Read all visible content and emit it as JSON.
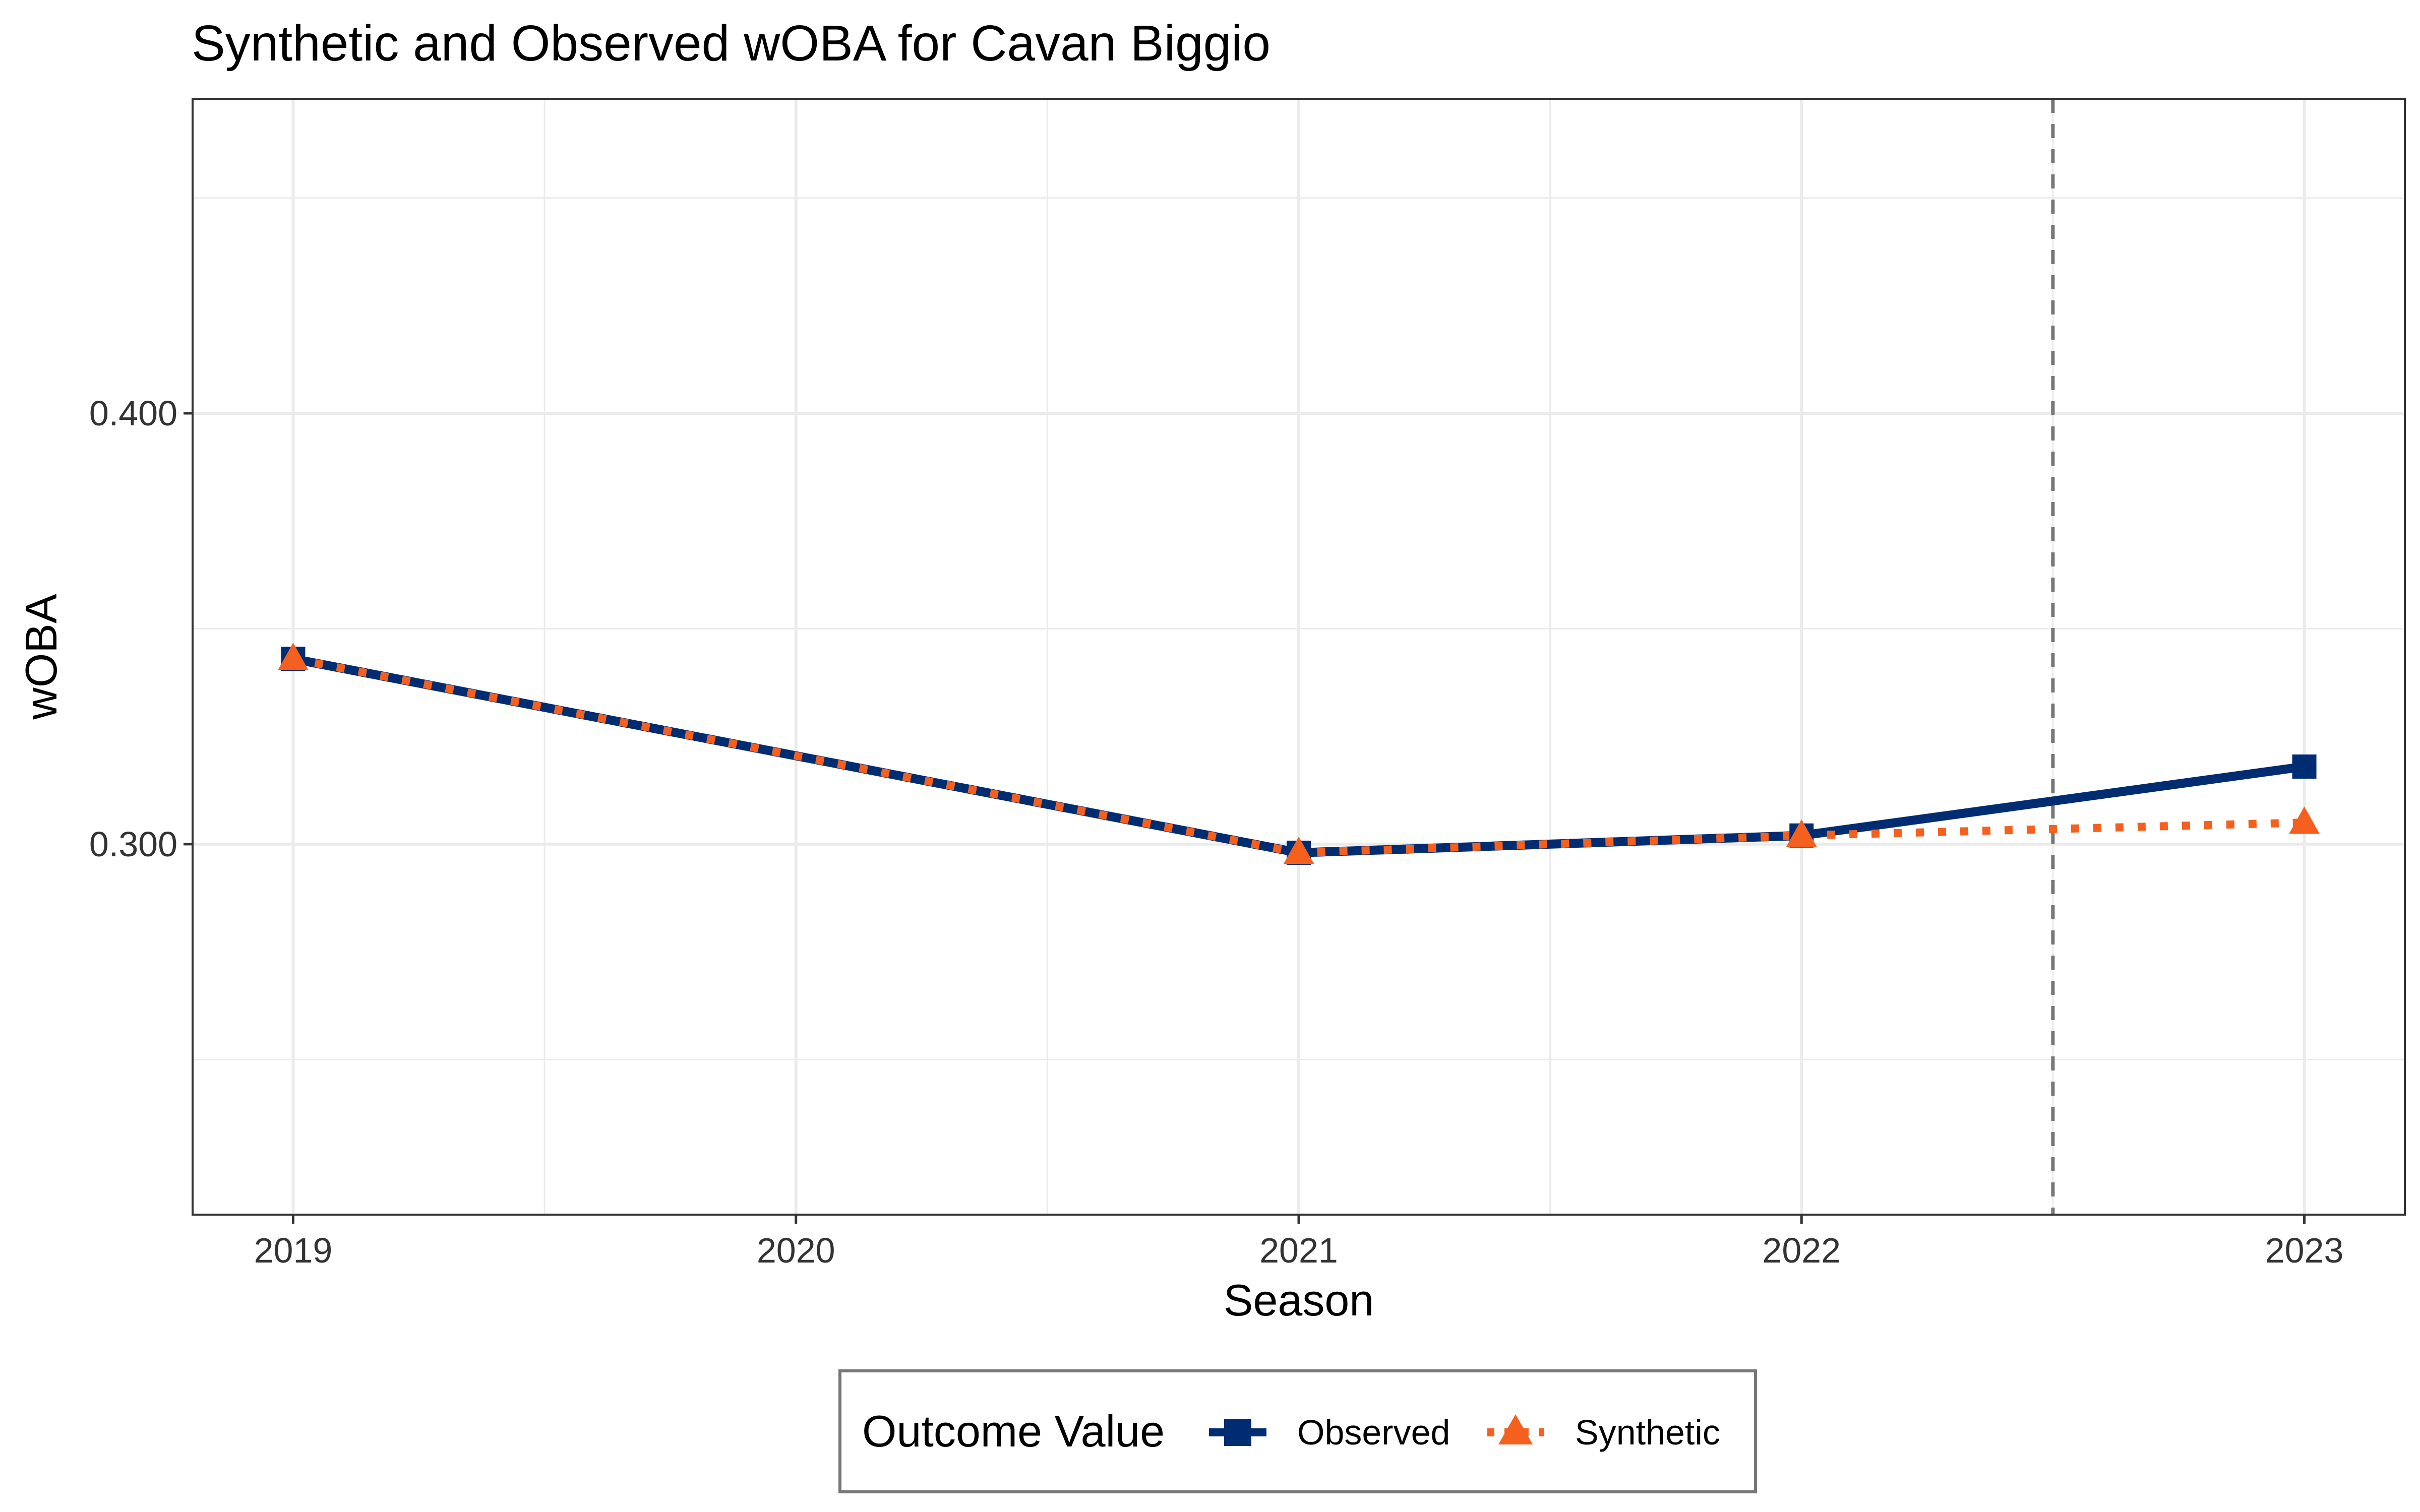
{
  "chart_data": {
    "type": "line",
    "title": "Synthetic and Observed wOBA for Cavan Biggio",
    "xlabel": "Season",
    "ylabel": "wOBA",
    "x": [
      2019,
      2020,
      2021,
      2022,
      2023
    ],
    "x_tick_labels": [
      "2019",
      "2020",
      "2021",
      "2022",
      "2023"
    ],
    "y_tick_values": [
      0.3,
      0.4
    ],
    "y_tick_labels": [
      "0.300",
      "0.400"
    ],
    "xlim": [
      2018.8,
      2023.2
    ],
    "ylim": [
      0.214,
      0.473
    ],
    "grid": true,
    "treatment_line_x": 2022.5,
    "series": [
      {
        "name": "Observed",
        "x": [
          2019,
          2021,
          2022,
          2023
        ],
        "values": [
          0.343,
          0.298,
          0.302,
          0.318
        ],
        "color": "#002D72",
        "line_style": "solid",
        "marker": "square"
      },
      {
        "name": "Synthetic",
        "x": [
          2019,
          2021,
          2022,
          2023
        ],
        "values": [
          0.343,
          0.298,
          0.302,
          0.305
        ],
        "color": "#F5601E",
        "line_style": "dotted",
        "marker": "triangle"
      }
    ],
    "legend": {
      "title": "Outcome Value",
      "position": "bottom"
    }
  }
}
